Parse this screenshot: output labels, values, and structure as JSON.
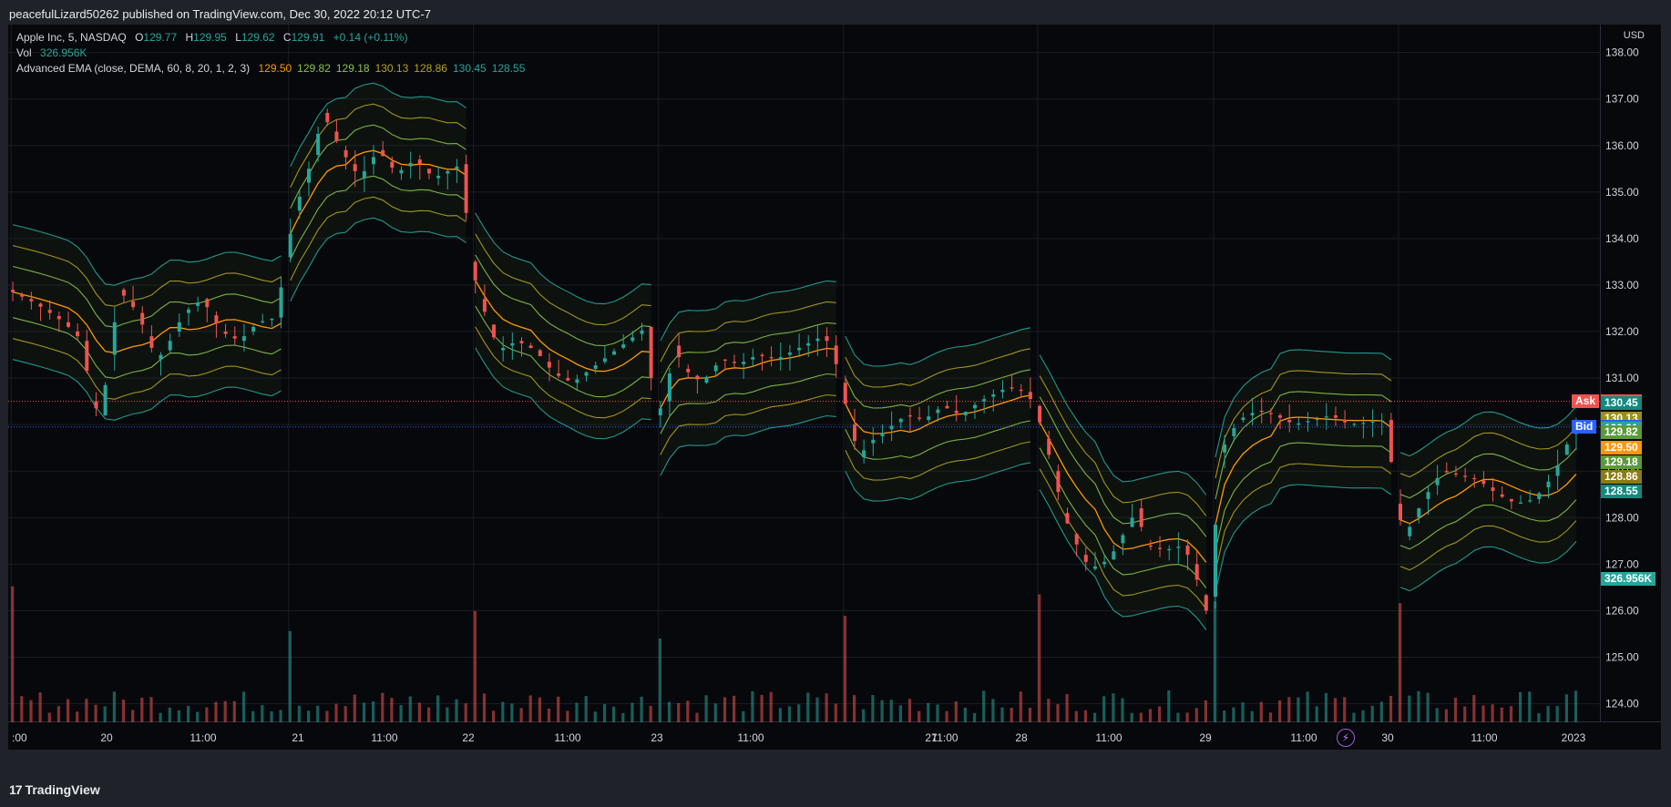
{
  "header": {
    "publish_text": "peacefulLizard50262 published on TradingView.com, Dec 30, 2022 20:12 UTC-7"
  },
  "legend": {
    "symbol": "Apple Inc, 5, NASDAQ",
    "open_label": "O",
    "open": "129.77",
    "high_label": "H",
    "high": "129.95",
    "low_label": "L",
    "low": "129.62",
    "close_label": "C",
    "close": "129.91",
    "change": "+0.14 (+0.11%)",
    "vol_label": "Vol",
    "vol_value": "326.956K",
    "indicator_label": "Advanced EMA (close, DEMA, 60, 8, 20, 1, 2, 3)",
    "indicator_values": [
      {
        "value": "129.50",
        "color": "#ff9800"
      },
      {
        "value": "129.82",
        "color": "#8bc34a"
      },
      {
        "value": "129.18",
        "color": "#8bc34a"
      },
      {
        "value": "130.13",
        "color": "#b5a21f"
      },
      {
        "value": "128.86",
        "color": "#b5a21f"
      },
      {
        "value": "130.45",
        "color": "#26a69a"
      },
      {
        "value": "128.55",
        "color": "#26a69a"
      }
    ]
  },
  "currency": "USD",
  "price_badges": [
    {
      "label": "Ask",
      "value": "130.50",
      "color": "#ef5350"
    },
    {
      "value": "130.45",
      "color": "#138a7e"
    },
    {
      "value": "130.13",
      "color": "#9c8f1a"
    },
    {
      "label": "Bid",
      "value": "129.95",
      "color": "#2962ff"
    },
    {
      "value": "129.91",
      "color": "#26a69a"
    },
    {
      "value": "129.82",
      "color": "#5b9a3a"
    },
    {
      "value": "129.50",
      "color": "#ff9800"
    },
    {
      "value": "129.18",
      "color": "#5b9a3a"
    },
    {
      "value": "128.86",
      "color": "#8a7c12"
    },
    {
      "value": "128.55",
      "color": "#138a7e"
    }
  ],
  "volume_badge": {
    "value": "326.956K",
    "color": "#26a69a"
  },
  "footer": {
    "brand": "TradingView"
  },
  "chart_data": {
    "type": "candlestick",
    "y_ticks": [
      "138.00",
      "137.00",
      "136.00",
      "135.00",
      "134.00",
      "133.00",
      "132.00",
      "131.00",
      "130.00",
      "129.00",
      "128.00",
      "127.00",
      "126.00",
      "125.00",
      "124.00"
    ],
    "x_ticks": [
      ":00",
      "20",
      "11:00",
      "21",
      "11:00",
      "22",
      "11:00",
      "23",
      "11:00",
      "27",
      "11:00",
      "28",
      "11:00",
      "29",
      "11:00",
      "30",
      "11:00",
      "2023"
    ],
    "ylim": [
      123.6,
      138.6
    ],
    "ask": 130.5,
    "bid": 129.95,
    "colors": {
      "up": "#26a69a",
      "down": "#ef5350",
      "band_outer": "#26a69a",
      "band_mid": "#b5a21f",
      "band_inner": "#8bc34a",
      "center": "#ff9800"
    },
    "session_path": [
      [
        0,
        132.9
      ],
      [
        3,
        132.6
      ],
      [
        6,
        132.2
      ],
      [
        8,
        131.8
      ],
      [
        9,
        130.5
      ],
      [
        10,
        130.2
      ],
      [
        11,
        131.5
      ],
      [
        12,
        132.9
      ],
      [
        14,
        132.4
      ],
      [
        16,
        131.4
      ],
      [
        17,
        131.6
      ],
      [
        19,
        132.4
      ],
      [
        21,
        132.7
      ],
      [
        23,
        132.0
      ],
      [
        25,
        131.8
      ],
      [
        27,
        132.2
      ],
      [
        29,
        132.3
      ],
      [
        30,
        133.6
      ],
      [
        31,
        134.6
      ],
      [
        33,
        135.8
      ],
      [
        34,
        136.7
      ],
      [
        36,
        135.9
      ],
      [
        38,
        135.3
      ],
      [
        40,
        135.9
      ],
      [
        42,
        135.4
      ],
      [
        44,
        135.7
      ],
      [
        46,
        135.3
      ],
      [
        48,
        135.5
      ],
      [
        49,
        135.6
      ],
      [
        50,
        133.5
      ],
      [
        51,
        132.7
      ],
      [
        53,
        131.6
      ],
      [
        55,
        131.8
      ],
      [
        57,
        131.6
      ],
      [
        59,
        131.1
      ],
      [
        61,
        130.9
      ],
      [
        63,
        131.2
      ],
      [
        65,
        131.5
      ],
      [
        67,
        131.8
      ],
      [
        69,
        132.1
      ],
      [
        69.5,
        131.0
      ],
      [
        70,
        130.2
      ],
      [
        71,
        130.5
      ],
      [
        72,
        131.7
      ],
      [
        73,
        131.2
      ],
      [
        75,
        130.9
      ],
      [
        77,
        131.4
      ],
      [
        79,
        131.3
      ],
      [
        81,
        131.5
      ],
      [
        83,
        131.4
      ],
      [
        85,
        131.6
      ],
      [
        88,
        131.9
      ],
      [
        89,
        131.7
      ],
      [
        90,
        130.9
      ],
      [
        91,
        130.0
      ],
      [
        92,
        129.3
      ],
      [
        93,
        129.6
      ],
      [
        95,
        129.9
      ],
      [
        97,
        130.2
      ],
      [
        99,
        130.1
      ],
      [
        101,
        130.4
      ],
      [
        103,
        130.2
      ],
      [
        105,
        130.5
      ],
      [
        108,
        130.8
      ],
      [
        110,
        130.7
      ],
      [
        111,
        130.4
      ],
      [
        112,
        129.7
      ],
      [
        113,
        129.0
      ],
      [
        114,
        128.1
      ],
      [
        116,
        127.2
      ],
      [
        117,
        126.9
      ],
      [
        119,
        127.1
      ],
      [
        121,
        127.8
      ],
      [
        122,
        128.2
      ],
      [
        123,
        127.4
      ],
      [
        125,
        127.3
      ],
      [
        127,
        127.4
      ],
      [
        128,
        127.0
      ],
      [
        129.5,
        126.0
      ],
      [
        130,
        126.3
      ],
      [
        131,
        129.4
      ],
      [
        133,
        130.1
      ],
      [
        135,
        130.3
      ],
      [
        137,
        130.2
      ],
      [
        139,
        130.0
      ],
      [
        141,
        130.1
      ],
      [
        143,
        130.2
      ],
      [
        145,
        130.0
      ],
      [
        149,
        130.1
      ],
      [
        150,
        128.3
      ],
      [
        151,
        127.6
      ],
      [
        153,
        128.4
      ],
      [
        155,
        129.0
      ],
      [
        157,
        128.9
      ],
      [
        159,
        128.8
      ],
      [
        161,
        128.5
      ],
      [
        163,
        128.3
      ],
      [
        165,
        128.4
      ],
      [
        167,
        128.9
      ],
      [
        169,
        129.8
      ],
      [
        170,
        129.91
      ]
    ],
    "session_starts": [
      0,
      30,
      50,
      70,
      90,
      111,
      130,
      150
    ],
    "n_candles": 170
  }
}
